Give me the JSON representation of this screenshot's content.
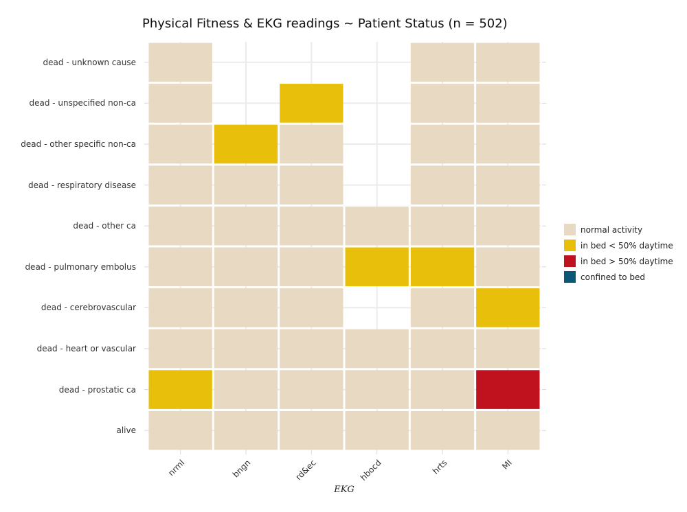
{
  "chart_data": {
    "type": "heatmap",
    "title": "Physical Fitness & EKG readings ~ Patient Status (n = 502)",
    "xlabel": "EKG",
    "ylabel": "",
    "x_categories": [
      "nrml",
      "bngn",
      "rd&ec",
      "hbocd",
      "hrts",
      "MI"
    ],
    "y_categories": [
      "dead - unknown cause",
      "dead - unspecified non-ca",
      "dead - other specific non-ca",
      "dead - respiratory disease",
      "dead - other ca",
      "dead - pulmonary embolus",
      "dead - cerebrovascular",
      "dead - heart or vascular",
      "dead - prostatic ca",
      "alive"
    ],
    "legend": {
      "position": "right",
      "entries": [
        {
          "label": "normal activity",
          "color": "#e8d9c3"
        },
        {
          "label": "in bed < 50% daytime",
          "color": "#e8c00b"
        },
        {
          "label": "in bed > 50% daytime",
          "color": "#c0111f"
        },
        {
          "label": "confined to bed",
          "color": "#0b5876"
        }
      ]
    },
    "cells": [
      [
        0,
        null,
        null,
        null,
        0,
        0
      ],
      [
        0,
        null,
        1,
        null,
        0,
        0
      ],
      [
        0,
        1,
        0,
        null,
        0,
        0
      ],
      [
        0,
        0,
        0,
        null,
        0,
        0
      ],
      [
        0,
        0,
        0,
        0,
        0,
        0
      ],
      [
        0,
        0,
        0,
        1,
        1,
        0
      ],
      [
        0,
        0,
        0,
        null,
        0,
        1
      ],
      [
        0,
        0,
        0,
        0,
        0,
        0
      ],
      [
        1,
        0,
        0,
        0,
        0,
        2
      ],
      [
        0,
        0,
        0,
        0,
        0,
        0
      ]
    ],
    "grid": true
  }
}
